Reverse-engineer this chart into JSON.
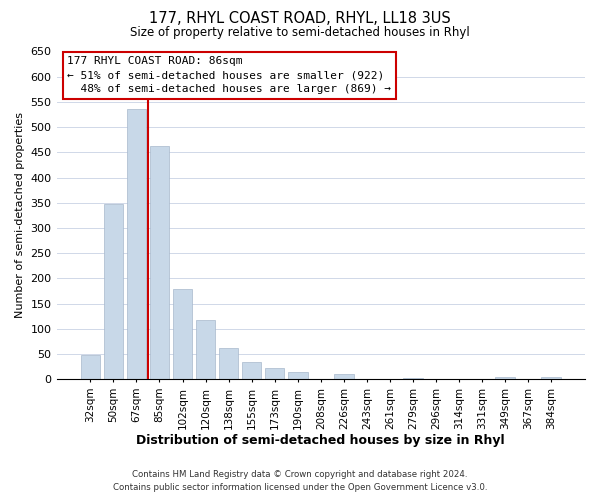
{
  "title": "177, RHYL COAST ROAD, RHYL, LL18 3US",
  "subtitle": "Size of property relative to semi-detached houses in Rhyl",
  "xlabel": "Distribution of semi-detached houses by size in Rhyl",
  "ylabel": "Number of semi-detached properties",
  "bar_labels": [
    "32sqm",
    "50sqm",
    "67sqm",
    "85sqm",
    "102sqm",
    "120sqm",
    "138sqm",
    "155sqm",
    "173sqm",
    "190sqm",
    "208sqm",
    "226sqm",
    "243sqm",
    "261sqm",
    "279sqm",
    "296sqm",
    "314sqm",
    "331sqm",
    "349sqm",
    "367sqm",
    "384sqm"
  ],
  "bar_values": [
    47,
    348,
    535,
    462,
    178,
    118,
    62,
    35,
    22,
    15,
    0,
    10,
    0,
    0,
    3,
    0,
    0,
    0,
    5,
    0,
    5
  ],
  "bar_color": "#c8d8e8",
  "bar_edge_color": "#a8b8cc",
  "vline_index": 3,
  "vline_color": "#cc0000",
  "ylim": [
    0,
    650
  ],
  "yticks": [
    0,
    50,
    100,
    150,
    200,
    250,
    300,
    350,
    400,
    450,
    500,
    550,
    600,
    650
  ],
  "annotation_line1": "177 RHYL COAST ROAD: 86sqm",
  "annotation_line2": "← 51% of semi-detached houses are smaller (922)",
  "annotation_line3": "  48% of semi-detached houses are larger (869) →",
  "footer_line1": "Contains HM Land Registry data © Crown copyright and database right 2024.",
  "footer_line2": "Contains public sector information licensed under the Open Government Licence v3.0.",
  "background_color": "#ffffff",
  "grid_color": "#d0d8e8"
}
